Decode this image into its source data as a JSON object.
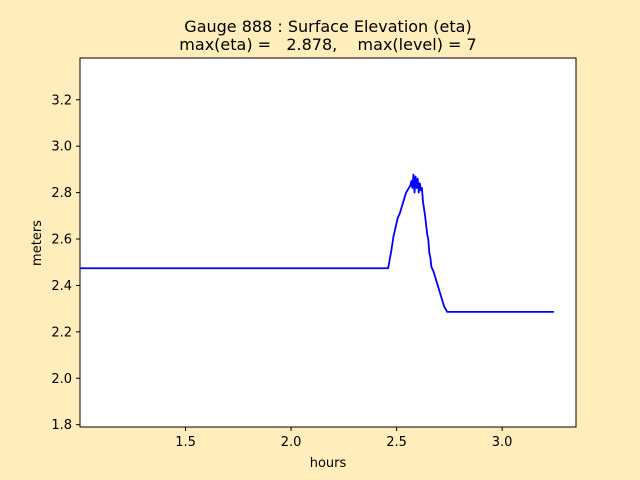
{
  "chart_data": {
    "type": "line",
    "title_line1": "Gauge 888 : Surface Elevation (eta)",
    "title_line2": "max(eta) =   2.878,    max(level) = 7",
    "xlabel": "hours",
    "ylabel": "meters",
    "xlim": [
      1.0,
      3.35
    ],
    "ylim": [
      1.79,
      3.38
    ],
    "xticks": [
      {
        "value": 1.5,
        "label": "1.5"
      },
      {
        "value": 2.0,
        "label": "2.0"
      },
      {
        "value": 2.5,
        "label": "2.5"
      },
      {
        "value": 3.0,
        "label": "3.0"
      }
    ],
    "yticks": [
      {
        "value": 1.8,
        "label": "1.8"
      },
      {
        "value": 2.0,
        "label": "2.0"
      },
      {
        "value": 2.2,
        "label": "2.2"
      },
      {
        "value": 2.4,
        "label": "2.4"
      },
      {
        "value": 2.6,
        "label": "2.6"
      },
      {
        "value": 2.8,
        "label": "2.8"
      },
      {
        "value": 3.0,
        "label": "3.0"
      },
      {
        "value": 3.2,
        "label": "3.2"
      }
    ],
    "grid": false,
    "colors": {
      "background": "#ffeebb",
      "plot_area": "#ffffff",
      "line": "#0000ff"
    },
    "series": [
      {
        "color": "#0000ff",
        "points": [
          [
            1.0,
            2.474
          ],
          [
            2.46,
            2.474
          ],
          [
            2.475,
            2.55
          ],
          [
            2.485,
            2.61
          ],
          [
            2.495,
            2.65
          ],
          [
            2.505,
            2.69
          ],
          [
            2.515,
            2.71
          ],
          [
            2.525,
            2.74
          ],
          [
            2.535,
            2.77
          ],
          [
            2.545,
            2.8
          ],
          [
            2.555,
            2.815
          ],
          [
            2.565,
            2.83
          ],
          [
            2.57,
            2.85
          ],
          [
            2.575,
            2.82
          ],
          [
            2.58,
            2.878
          ],
          [
            2.585,
            2.8
          ],
          [
            2.59,
            2.87
          ],
          [
            2.595,
            2.82
          ],
          [
            2.6,
            2.86
          ],
          [
            2.605,
            2.8
          ],
          [
            2.61,
            2.84
          ],
          [
            2.615,
            2.81
          ],
          [
            2.62,
            2.82
          ],
          [
            2.625,
            2.76
          ],
          [
            2.635,
            2.7
          ],
          [
            2.645,
            2.62
          ],
          [
            2.65,
            2.6
          ],
          [
            2.655,
            2.54
          ],
          [
            2.66,
            2.52
          ],
          [
            2.665,
            2.48
          ],
          [
            2.675,
            2.46
          ],
          [
            2.685,
            2.43
          ],
          [
            2.695,
            2.4
          ],
          [
            2.705,
            2.37
          ],
          [
            2.715,
            2.34
          ],
          [
            2.725,
            2.31
          ],
          [
            2.74,
            2.286
          ],
          [
            3.245,
            2.286
          ]
        ]
      }
    ]
  }
}
